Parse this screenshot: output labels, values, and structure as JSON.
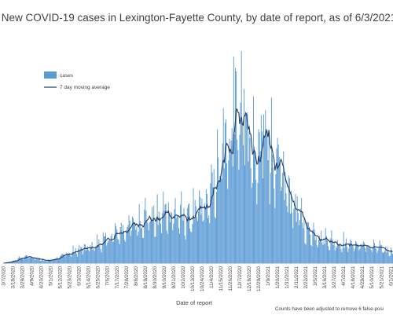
{
  "chart_data": {
    "type": "bar",
    "title": "New COVID-19 cases in Lexington-Fayette County, by date of report, as of 6/3/2021",
    "xlabel": "Date of report",
    "ylabel": "",
    "grid": false,
    "legend_position": "top-left",
    "footnote": "Counts have been adjusted to remove 6 false-posi",
    "x_tick_labels": [
      "3/7/2020",
      "3/18/2020",
      "3/29/2020",
      "4/9/2020",
      "4/20/2020",
      "5/1/2020",
      "5/12/2020",
      "5/23/2020",
      "6/3/2020",
      "6/14/2020",
      "6/25/2020",
      "7/6/2020",
      "7/17/2020",
      "7/28/2020",
      "8/8/2020",
      "8/19/2020",
      "8/30/2020",
      "9/10/2020",
      "9/21/2020",
      "10/2/2020",
      "10/13/2020",
      "10/24/2020",
      "11/4/2020",
      "11/15/2020",
      "11/26/2020",
      "12/7/2020",
      "12/18/2020",
      "12/29/2020",
      "1/9/2021",
      "1/20/2021",
      "1/31/2021",
      "2/11/2021",
      "2/22/2021",
      "3/5/2021",
      "3/16/2021",
      "3/27/2021",
      "4/7/2021",
      "4/18/2021",
      "4/29/2021",
      "5/10/2021",
      "5/21/2021",
      "6/1/2021"
    ],
    "series": [
      {
        "name": "cases",
        "kind": "bar",
        "color": "#5b9bd5"
      },
      {
        "name": "7 day moving average",
        "kind": "line",
        "color": "#1f3864"
      }
    ],
    "ma_anchors": [
      [
        "3/7/2020",
        0
      ],
      [
        "3/17/2020",
        2
      ],
      [
        "3/27/2020",
        6
      ],
      [
        "4/5/2020",
        8
      ],
      [
        "4/15/2020",
        5
      ],
      [
        "4/25/2020",
        3
      ],
      [
        "5/5/2020",
        5
      ],
      [
        "5/15/2020",
        10
      ],
      [
        "5/25/2020",
        12
      ],
      [
        "6/4/2020",
        16
      ],
      [
        "6/14/2020",
        18
      ],
      [
        "6/24/2020",
        22
      ],
      [
        "7/4/2020",
        27
      ],
      [
        "7/14/2020",
        33
      ],
      [
        "7/24/2020",
        40
      ],
      [
        "8/3/2020",
        45
      ],
      [
        "8/13/2020",
        52
      ],
      [
        "8/23/2020",
        55
      ],
      [
        "9/2/2020",
        50
      ],
      [
        "9/12/2020",
        62
      ],
      [
        "9/22/2020",
        58
      ],
      [
        "10/2/2020",
        52
      ],
      [
        "10/12/2020",
        55
      ],
      [
        "10/22/2020",
        62
      ],
      [
        "11/1/2020",
        72
      ],
      [
        "11/11/2020",
        100
      ],
      [
        "11/21/2020",
        140
      ],
      [
        "12/1/2020",
        165
      ],
      [
        "12/8/2020",
        185
      ],
      [
        "12/15/2020",
        160
      ],
      [
        "12/25/2020",
        110
      ],
      [
        "1/4/2021",
        145
      ],
      [
        "1/14/2021",
        125
      ],
      [
        "1/24/2021",
        100
      ],
      [
        "2/3/2021",
        80
      ],
      [
        "2/13/2021",
        60
      ],
      [
        "2/23/2021",
        40
      ],
      [
        "3/5/2021",
        35
      ],
      [
        "3/15/2021",
        30
      ],
      [
        "3/25/2021",
        25
      ],
      [
        "4/4/2021",
        24
      ],
      [
        "4/14/2021",
        22
      ],
      [
        "4/24/2021",
        22
      ],
      [
        "5/4/2021",
        20
      ],
      [
        "5/14/2021",
        18
      ],
      [
        "5/24/2021",
        16
      ],
      [
        "6/3/2021",
        15
      ]
    ],
    "bar_spikes": [
      [
        "11/30/2020",
        250
      ],
      [
        "12/3/2020",
        232
      ],
      [
        "1/4/2021",
        180
      ],
      [
        "12/14/2020",
        180
      ],
      [
        "1/10/2021",
        160
      ],
      [
        "12/10/2020",
        170
      ],
      [
        "11/26/2020",
        135
      ]
    ],
    "ylim": [
      0,
      250
    ]
  }
}
